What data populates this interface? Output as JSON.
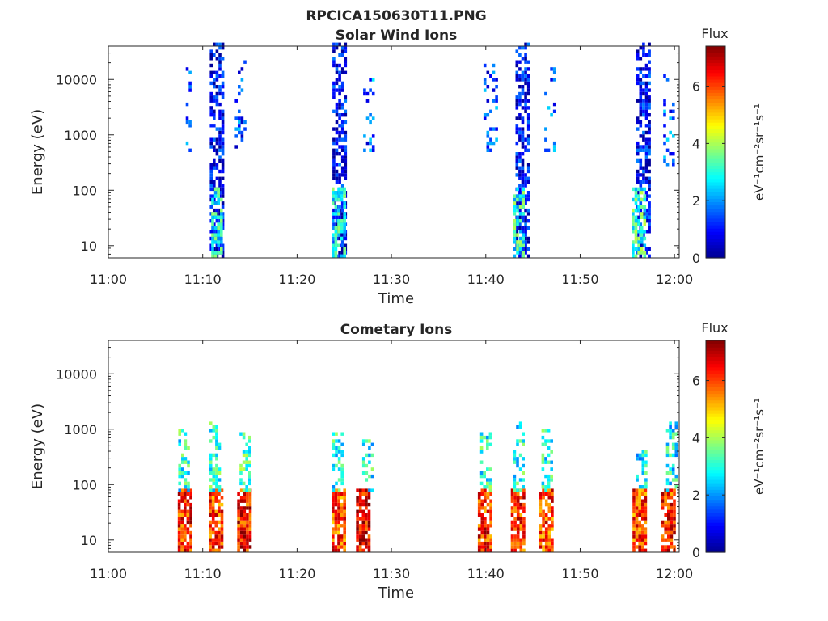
{
  "figure_title": "RPCICA150630T11.PNG",
  "colormap": [
    "#00008f",
    "#0000ff",
    "#0080ff",
    "#00ffff",
    "#80ff80",
    "#ffff00",
    "#ff8000",
    "#ff0000",
    "#800000"
  ],
  "chart_data": [
    {
      "type": "heatmap",
      "title": "Solar Wind Ions",
      "xlabel": "Time",
      "ylabel": "Energy (eV)",
      "x_ticks": [
        "11:00",
        "11:10",
        "11:20",
        "11:30",
        "11:40",
        "11:50",
        "12:00"
      ],
      "x_range_minutes": [
        0,
        60.5
      ],
      "y_scale": "log",
      "y_range": [
        6,
        40000
      ],
      "y_ticks": [
        "10",
        "100",
        "1000",
        "10000"
      ],
      "colorbar": {
        "label": "Flux",
        "units": "eV⁻¹cm⁻²sr⁻¹s⁻¹",
        "range": [
          0,
          7.4
        ],
        "ticks": [
          "0",
          "2",
          "4",
          "6"
        ]
      },
      "clusters": [
        {
          "t": 8.5,
          "w": 0.6,
          "emin": 300,
          "emax": 20000,
          "flux": 1.5,
          "density": 0.25
        },
        {
          "t": 11.5,
          "w": 1.5,
          "emin": 6,
          "emax": 40000,
          "flux": 0.8,
          "density": 0.6
        },
        {
          "t": 11.5,
          "w": 1.2,
          "emin": 6,
          "emax": 100,
          "flux": 2.8,
          "density": 0.7
        },
        {
          "t": 14.0,
          "w": 1.2,
          "emin": 300,
          "emax": 20000,
          "flux": 1.5,
          "density": 0.15
        },
        {
          "t": 24.5,
          "w": 1.5,
          "emin": 6,
          "emax": 40000,
          "flux": 0.8,
          "density": 0.6
        },
        {
          "t": 24.3,
          "w": 1.3,
          "emin": 6,
          "emax": 100,
          "flux": 2.8,
          "density": 0.7
        },
        {
          "t": 27.5,
          "w": 1.0,
          "emin": 500,
          "emax": 10000,
          "flux": 1.6,
          "density": 0.2
        },
        {
          "t": 40.5,
          "w": 1.5,
          "emin": 500,
          "emax": 20000,
          "flux": 1.4,
          "density": 0.2
        },
        {
          "t": 43.8,
          "w": 1.3,
          "emin": 6,
          "emax": 40000,
          "flux": 0.8,
          "density": 0.6
        },
        {
          "t": 43.5,
          "w": 1.2,
          "emin": 6,
          "emax": 100,
          "flux": 3.0,
          "density": 0.7
        },
        {
          "t": 46.8,
          "w": 1.2,
          "emin": 500,
          "emax": 20000,
          "flux": 1.6,
          "density": 0.2
        },
        {
          "t": 56.7,
          "w": 1.5,
          "emin": 6,
          "emax": 40000,
          "flux": 0.8,
          "density": 0.6
        },
        {
          "t": 56.2,
          "w": 1.5,
          "emin": 6,
          "emax": 100,
          "flux": 3.2,
          "density": 0.7
        },
        {
          "t": 59.3,
          "w": 1.0,
          "emin": 300,
          "emax": 15000,
          "flux": 1.5,
          "density": 0.2
        }
      ]
    },
    {
      "type": "heatmap",
      "title": "Cometary Ions",
      "xlabel": "Time",
      "ylabel": "Energy (eV)",
      "x_ticks": [
        "11:00",
        "11:10",
        "11:20",
        "11:30",
        "11:40",
        "11:50",
        "12:00"
      ],
      "x_range_minutes": [
        0,
        60.5
      ],
      "y_scale": "log",
      "y_range": [
        6,
        40000
      ],
      "y_ticks": [
        "10",
        "100",
        "1000",
        "10000"
      ],
      "colorbar": {
        "label": "Flux",
        "units": "eV⁻¹cm⁻²sr⁻¹s⁻¹",
        "range": [
          0,
          7.4
        ],
        "ticks": [
          "0",
          "2",
          "4",
          "6"
        ]
      },
      "clusters": [
        {
          "t": 8.0,
          "w": 1.3,
          "emin": 6,
          "emax": 80,
          "flux": 6.2,
          "density": 0.85
        },
        {
          "t": 8.0,
          "w": 1.2,
          "emin": 80,
          "emax": 1000,
          "flux": 3.0,
          "density": 0.45
        },
        {
          "t": 11.3,
          "w": 1.3,
          "emin": 6,
          "emax": 80,
          "flux": 6.0,
          "density": 0.85
        },
        {
          "t": 11.3,
          "w": 1.2,
          "emin": 80,
          "emax": 1200,
          "flux": 3.0,
          "density": 0.5
        },
        {
          "t": 14.3,
          "w": 1.3,
          "emin": 6,
          "emax": 80,
          "flux": 6.4,
          "density": 0.85
        },
        {
          "t": 14.5,
          "w": 1.2,
          "emin": 80,
          "emax": 800,
          "flux": 3.2,
          "density": 0.45
        },
        {
          "t": 24.3,
          "w": 1.3,
          "emin": 6,
          "emax": 80,
          "flux": 6.0,
          "density": 0.85
        },
        {
          "t": 24.3,
          "w": 1.2,
          "emin": 80,
          "emax": 800,
          "flux": 3.0,
          "density": 0.45
        },
        {
          "t": 27.0,
          "w": 1.5,
          "emin": 6,
          "emax": 80,
          "flux": 6.6,
          "density": 0.85
        },
        {
          "t": 27.5,
          "w": 1.2,
          "emin": 80,
          "emax": 600,
          "flux": 3.0,
          "density": 0.4
        },
        {
          "t": 39.8,
          "w": 1.3,
          "emin": 6,
          "emax": 80,
          "flux": 6.2,
          "density": 0.85
        },
        {
          "t": 40.0,
          "w": 1.2,
          "emin": 80,
          "emax": 1000,
          "flux": 3.0,
          "density": 0.45
        },
        {
          "t": 43.3,
          "w": 1.3,
          "emin": 6,
          "emax": 80,
          "flux": 6.2,
          "density": 0.85
        },
        {
          "t": 43.5,
          "w": 1.2,
          "emin": 80,
          "emax": 1200,
          "flux": 3.0,
          "density": 0.45
        },
        {
          "t": 46.3,
          "w": 1.3,
          "emin": 6,
          "emax": 80,
          "flux": 6.0,
          "density": 0.85
        },
        {
          "t": 46.5,
          "w": 1.2,
          "emin": 80,
          "emax": 900,
          "flux": 3.0,
          "density": 0.45
        },
        {
          "t": 56.2,
          "w": 1.3,
          "emin": 6,
          "emax": 80,
          "flux": 6.0,
          "density": 0.85
        },
        {
          "t": 56.5,
          "w": 1.2,
          "emin": 80,
          "emax": 400,
          "flux": 2.8,
          "density": 0.45
        },
        {
          "t": 59.3,
          "w": 1.4,
          "emin": 6,
          "emax": 80,
          "flux": 6.2,
          "density": 0.85
        },
        {
          "t": 59.6,
          "w": 1.0,
          "emin": 80,
          "emax": 1500,
          "flux": 2.8,
          "density": 0.4
        }
      ]
    }
  ]
}
